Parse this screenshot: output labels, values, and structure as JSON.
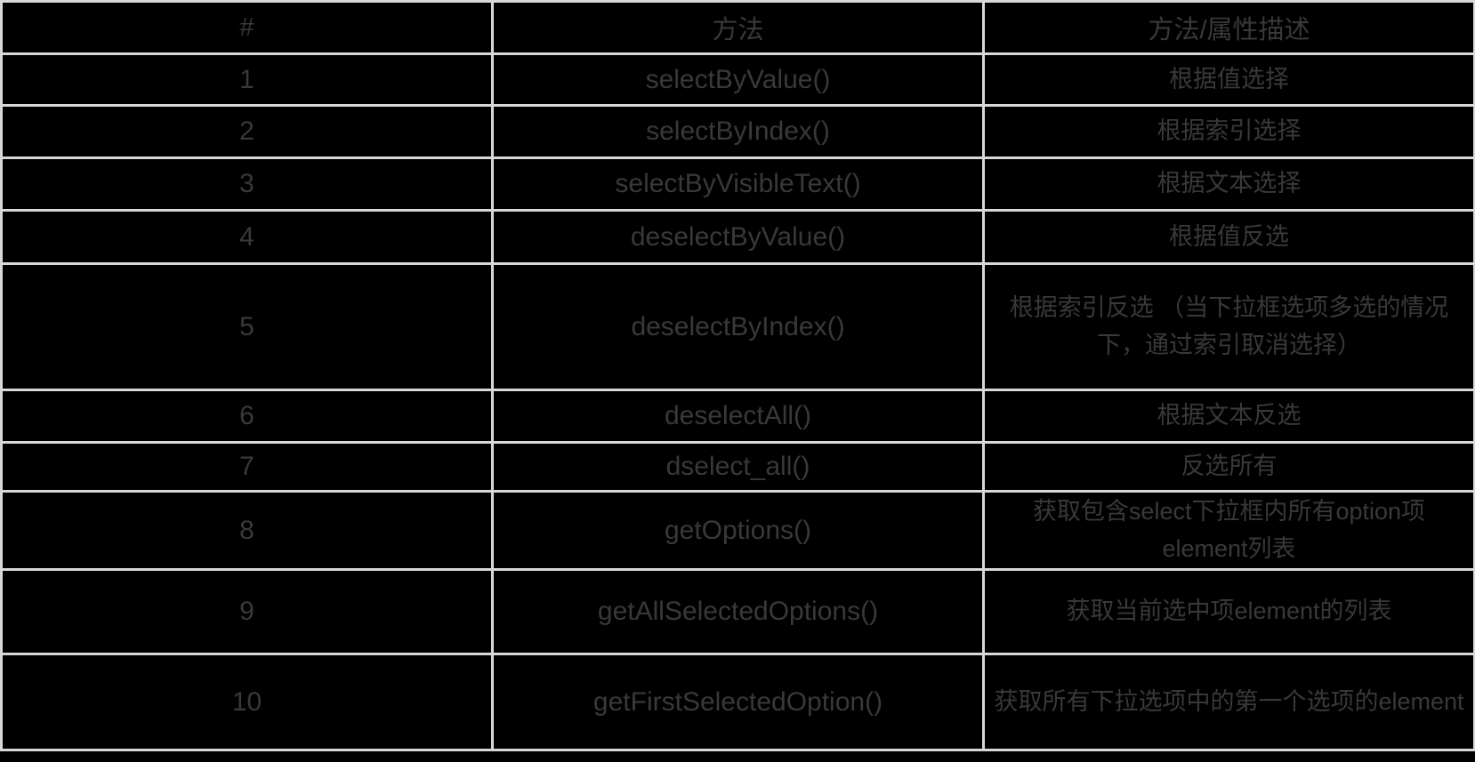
{
  "colors": {
    "background": "#000000",
    "grid_border": "#d8d8d8",
    "text": "#39393b",
    "method_highlight": "#e23049"
  },
  "table": {
    "columns": [
      {
        "label": "#"
      },
      {
        "label": "方法"
      },
      {
        "label": "方法/属性描述"
      }
    ],
    "rows": [
      {
        "num": "1",
        "method": "selectByValue()",
        "method_red": true,
        "desc": "根据值选择"
      },
      {
        "num": "2",
        "method": "selectByIndex()",
        "method_red": true,
        "desc": "根据索引选择"
      },
      {
        "num": "3",
        "method": "selectByVisibleText()",
        "method_red": true,
        "desc": "根据文本选择"
      },
      {
        "num": "4",
        "method": "deselectByValue()",
        "method_red": false,
        "desc": "根据值反选"
      },
      {
        "num": "5",
        "method": "deselectByIndex()",
        "method_red": false,
        "desc": "根据索引反选 （当下拉框选项多选的情况下，通过索引取消选择）"
      },
      {
        "num": "6",
        "method": "deselectAll()",
        "method_red": false,
        "desc": "根据文本反选"
      },
      {
        "num": "7",
        "method": "dselect_all()",
        "method_red": false,
        "desc": "反选所有"
      },
      {
        "num": "8",
        "method": "getOptions()",
        "method_red": false,
        "desc": "获取包含select下拉框内所有option项element列表"
      },
      {
        "num": "9",
        "method": "getAllSelectedOptions()",
        "method_red": false,
        "desc": "获取当前选中项element的列表"
      },
      {
        "num": "10",
        "method": "getFirstSelectedOption()",
        "method_red": false,
        "desc": "获取所有下拉选项中的第一个选项的element"
      }
    ]
  }
}
